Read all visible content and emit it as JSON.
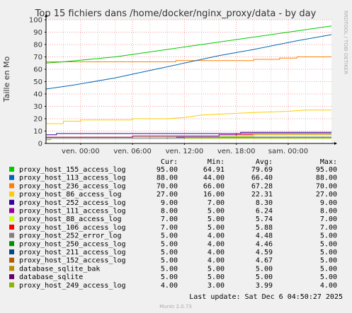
{
  "chart_data": {
    "type": "line",
    "title": "Top 15 fichiers dans /home/docker/nginx_proxy/data - by day",
    "ylabel": "Taille en Mo",
    "xlabel": "",
    "ylim": [
      0,
      100
    ],
    "yticks": [
      0,
      10,
      20,
      30,
      40,
      50,
      60,
      70,
      80,
      90,
      100
    ],
    "x_range": [
      "ven. 20:00",
      "sam. 04:50"
    ],
    "xticks": [
      "ven. 00:00",
      "ven. 06:00",
      "ven. 12:00",
      "ven. 18:00",
      "sam. 00:00"
    ],
    "xtick_hours": [
      0,
      6,
      12,
      18,
      24
    ],
    "x_start_hour": -4,
    "x_end_hour": 29,
    "grid": true,
    "side_label": "RRDTOOL / TOBI OETIKER",
    "legend_headers": {
      "cur": "Cur:",
      "min": "Min:",
      "avg": "Avg:",
      "max": "Max:"
    },
    "series": [
      {
        "name": "proxy_host_155_access_log",
        "color": "#00cc00",
        "cur": "95.00",
        "min": "64.91",
        "avg": "79.69",
        "max": "95.00",
        "points": [
          [
            -4,
            65
          ],
          [
            -2,
            66
          ],
          [
            4,
            70
          ],
          [
            10,
            76
          ],
          [
            16,
            82
          ],
          [
            20,
            86
          ],
          [
            26,
            92
          ],
          [
            29,
            95
          ]
        ]
      },
      {
        "name": "proxy_host_113_access_log",
        "color": "#0066b3",
        "cur": "88.00",
        "min": "44.00",
        "avg": "66.40",
        "max": "88.00",
        "points": [
          [
            -4,
            44
          ],
          [
            -1,
            47
          ],
          [
            4,
            53
          ],
          [
            8,
            59
          ],
          [
            12,
            65
          ],
          [
            16,
            71
          ],
          [
            20,
            76
          ],
          [
            25,
            83
          ],
          [
            29,
            88
          ]
        ]
      },
      {
        "name": "proxy_host_236_access_log",
        "color": "#ff8000",
        "cur": "70.00",
        "min": "66.00",
        "avg": "67.28",
        "max": "70.00",
        "points": [
          [
            -4,
            66
          ],
          [
            11,
            66
          ],
          [
            11,
            67
          ],
          [
            20,
            67
          ],
          [
            20,
            68
          ],
          [
            23,
            68
          ],
          [
            23,
            69
          ],
          [
            25,
            69
          ],
          [
            25,
            70
          ],
          [
            29,
            70
          ]
        ]
      },
      {
        "name": "proxy_host_86_access_log",
        "color": "#ffcc00",
        "cur": "27.00",
        "min": "16.00",
        "avg": "22.31",
        "max": "27.00",
        "points": [
          [
            -4,
            16
          ],
          [
            -2,
            16
          ],
          [
            -2,
            18
          ],
          [
            0,
            18
          ],
          [
            0,
            19
          ],
          [
            6,
            19
          ],
          [
            6,
            20
          ],
          [
            10,
            20
          ],
          [
            12,
            21
          ],
          [
            14,
            23
          ],
          [
            17,
            24
          ],
          [
            20,
            25
          ],
          [
            24,
            26
          ],
          [
            26,
            27
          ],
          [
            29,
            27
          ]
        ]
      },
      {
        "name": "proxy_host_252_access_log",
        "color": "#330099",
        "cur": "9.00",
        "min": "7.00",
        "avg": "8.30",
        "max": "9.00",
        "points": [
          [
            -4,
            7
          ],
          [
            -2.8,
            7
          ],
          [
            -2.8,
            8
          ],
          [
            18.5,
            8
          ],
          [
            18.5,
            9
          ],
          [
            29,
            9
          ]
        ]
      },
      {
        "name": "proxy_host_111_access_log",
        "color": "#990099",
        "cur": "8.00",
        "min": "5.00",
        "avg": "6.24",
        "max": "8.00",
        "points": [
          [
            -4,
            5
          ],
          [
            6,
            5
          ],
          [
            6,
            6
          ],
          [
            16,
            6
          ],
          [
            16,
            7
          ],
          [
            18,
            7
          ],
          [
            18,
            8
          ],
          [
            29,
            8
          ]
        ]
      },
      {
        "name": "proxy_host_88_access_log",
        "color": "#ccff00",
        "cur": "7.00",
        "min": "5.00",
        "avg": "5.74",
        "max": "7.00",
        "points": [
          [
            -4,
            5
          ],
          [
            11,
            5
          ],
          [
            11,
            6
          ],
          [
            20,
            6
          ],
          [
            20,
            7
          ],
          [
            29,
            7
          ]
        ]
      },
      {
        "name": "proxy_host_106_access_log",
        "color": "#ff0000",
        "cur": "7.00",
        "min": "5.00",
        "avg": "5.88",
        "max": "7.00",
        "points": [
          [
            -4,
            5
          ],
          [
            6,
            5
          ],
          [
            6,
            6
          ],
          [
            18,
            6
          ],
          [
            18,
            7
          ],
          [
            29,
            7
          ]
        ]
      },
      {
        "name": "proxy_host_252_error_log",
        "color": "#808080",
        "cur": "5.00",
        "min": "4.00",
        "avg": "4.48",
        "max": "5.00",
        "points": [
          [
            -4,
            4
          ],
          [
            12,
            4
          ],
          [
            12,
            5
          ],
          [
            29,
            5
          ]
        ]
      },
      {
        "name": "proxy_host_250_access_log",
        "color": "#008f00",
        "cur": "5.00",
        "min": "4.00",
        "avg": "4.46",
        "max": "5.00",
        "points": [
          [
            -4,
            4
          ],
          [
            12,
            4
          ],
          [
            12,
            5
          ],
          [
            29,
            5
          ]
        ]
      },
      {
        "name": "proxy_host_211_access_log",
        "color": "#00487d",
        "cur": "5.00",
        "min": "4.00",
        "avg": "4.59",
        "max": "5.00",
        "points": [
          [
            -4,
            4
          ],
          [
            10,
            4
          ],
          [
            10,
            5
          ],
          [
            29,
            5
          ]
        ]
      },
      {
        "name": "proxy_host_152_access_log",
        "color": "#b35a00",
        "cur": "5.00",
        "min": "4.00",
        "avg": "4.67",
        "max": "5.00",
        "points": [
          [
            -4,
            4
          ],
          [
            8,
            4
          ],
          [
            8,
            5
          ],
          [
            29,
            5
          ]
        ]
      },
      {
        "name": "database_sqlite_bak",
        "color": "#b38f00",
        "cur": "5.00",
        "min": "5.00",
        "avg": "5.00",
        "max": "5.00",
        "points": [
          [
            -4,
            5
          ],
          [
            29,
            5
          ]
        ]
      },
      {
        "name": "database_sqlite",
        "color": "#6b006b",
        "cur": "5.00",
        "min": "5.00",
        "avg": "5.00",
        "max": "5.00",
        "points": [
          [
            -4,
            5
          ],
          [
            29,
            5
          ]
        ]
      },
      {
        "name": "proxy_host_249_access_log",
        "color": "#8fb300",
        "cur": "4.00",
        "min": "3.00",
        "avg": "3.99",
        "max": "4.00",
        "points": [
          [
            -4,
            3
          ],
          [
            -3.5,
            3
          ],
          [
            -3.5,
            4
          ],
          [
            29,
            4
          ]
        ]
      }
    ]
  },
  "footer": {
    "last_update": "Last update:  Sat Dec  6 04:50:27 2025",
    "munin_version": "Munin 2.0.73"
  }
}
